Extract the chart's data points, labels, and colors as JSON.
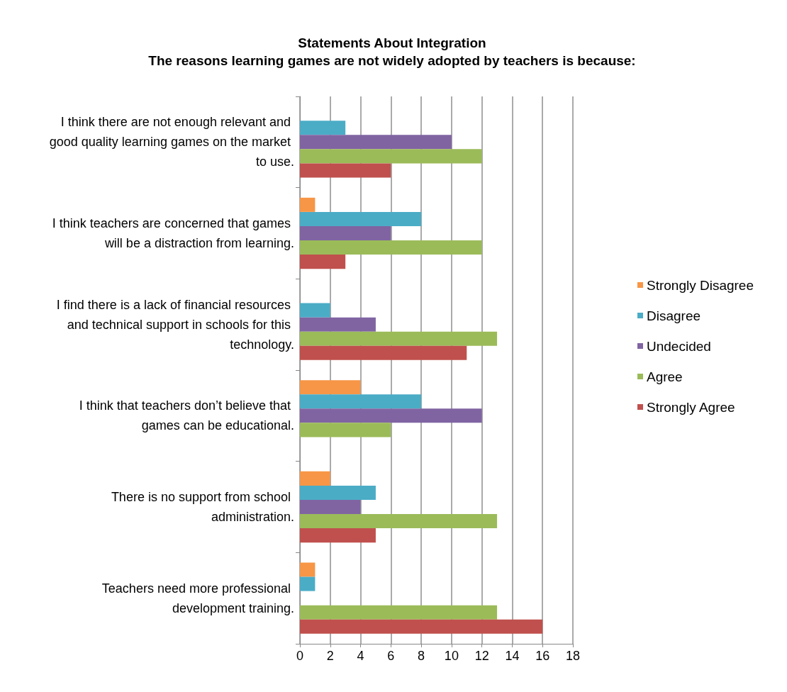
{
  "chart_data": {
    "type": "bar",
    "orientation": "horizontal",
    "title": "Statements About Integration",
    "subtitle": "The reasons learning games are not widely adopted by teachers is because:",
    "categories": [
      "I think there are not enough relevant and good quality learning games on the market to use.",
      "I think teachers are concerned that games will be a distraction from learning.",
      "I find there is a lack of financial resources and technical support in schools for this technology.",
      "I think that teachers don’t believe that games can be educational.",
      "There is no support from school administration.",
      "Teachers need more professional development training."
    ],
    "series": [
      {
        "name": "Strongly Disagree",
        "color": "#f79646",
        "values": [
          0,
          1,
          0,
          4,
          2,
          1
        ]
      },
      {
        "name": "Disagree",
        "color": "#4bacc6",
        "values": [
          3,
          8,
          2,
          8,
          5,
          1
        ]
      },
      {
        "name": "Undecided",
        "color": "#8064a2",
        "values": [
          10,
          6,
          5,
          12,
          4,
          0
        ]
      },
      {
        "name": "Agree",
        "color": "#9bbb59",
        "values": [
          12,
          12,
          13,
          6,
          13,
          13
        ]
      },
      {
        "name": "Strongly Agree",
        "color": "#c0504d",
        "values": [
          6,
          3,
          11,
          0,
          5,
          16
        ]
      }
    ],
    "xlim": [
      0,
      18
    ],
    "xticks": [
      0,
      2,
      4,
      6,
      8,
      10,
      12,
      14,
      16,
      18
    ],
    "grid": "x",
    "legend": "right"
  }
}
